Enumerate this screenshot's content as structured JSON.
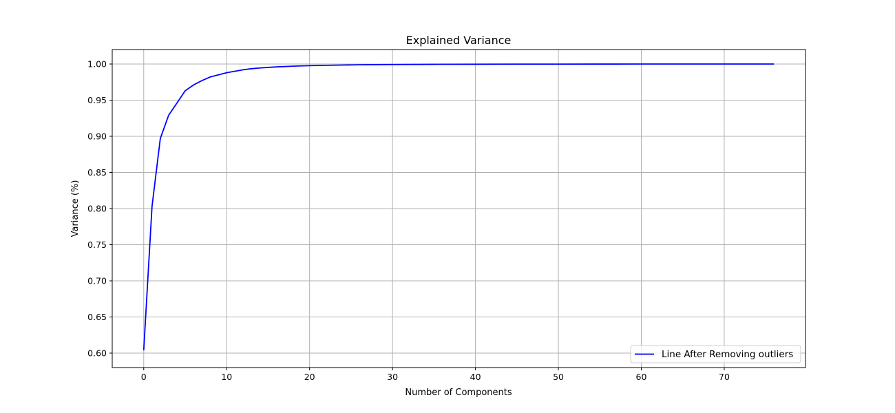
{
  "chart_data": {
    "type": "line",
    "title": "Explained Variance",
    "xlabel": "Number of Components",
    "ylabel": "Variance (%)",
    "xlim": [
      -3.8,
      79.8
    ],
    "ylim": [
      0.58,
      1.02
    ],
    "xticks": [
      0,
      10,
      20,
      30,
      40,
      50,
      60,
      70
    ],
    "yticks": [
      0.6,
      0.65,
      0.7,
      0.75,
      0.8,
      0.85,
      0.9,
      0.95,
      1.0
    ],
    "ytick_labels": [
      "0.60",
      "0.65",
      "0.70",
      "0.75",
      "0.80",
      "0.85",
      "0.90",
      "0.95",
      "1.00"
    ],
    "xtick_labels": [
      "0",
      "10",
      "20",
      "30",
      "40",
      "50",
      "60",
      "70"
    ],
    "grid": true,
    "legend_position": "lower-right",
    "series": [
      {
        "name": "Line After Removing outliers",
        "color": "#0000ff",
        "x": [
          0,
          1,
          2,
          3,
          4,
          5,
          6,
          7,
          8,
          9,
          10,
          11,
          12,
          13,
          14,
          15,
          16,
          17,
          18,
          19,
          20,
          22,
          24,
          26,
          28,
          30,
          35,
          40,
          45,
          50,
          55,
          60,
          65,
          70,
          76
        ],
        "y": [
          0.604,
          0.803,
          0.897,
          0.929,
          0.946,
          0.963,
          0.971,
          0.977,
          0.982,
          0.985,
          0.988,
          0.99,
          0.992,
          0.9935,
          0.9945,
          0.9953,
          0.996,
          0.9965,
          0.997,
          0.9974,
          0.9977,
          0.9982,
          0.9986,
          0.9989,
          0.9991,
          0.9993,
          0.9996,
          0.9997,
          0.99985,
          0.9999,
          0.99995,
          0.99997,
          0.99998,
          0.99999,
          1.0
        ]
      }
    ]
  }
}
